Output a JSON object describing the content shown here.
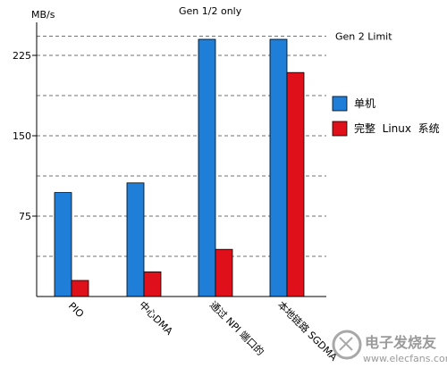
{
  "chart_data": {
    "type": "bar",
    "title": "Gen 1/2 only",
    "ylabel": "MB/s",
    "xlabel": "",
    "ylim": [
      0,
      260
    ],
    "yticks": [
      75,
      150,
      225
    ],
    "grid": "dashed horizontal every 37.5",
    "categories": [
      "PIO",
      "中心DMA",
      "通过 NPI 端口的",
      "本地链路 SGDMA"
    ],
    "series": [
      {
        "name": "单机",
        "color": "#1f7fd8",
        "values": [
          97,
          106,
          240,
          240
        ]
      },
      {
        "name": "完整  Linux  系统",
        "color": "#e0101a",
        "values": [
          15,
          23,
          44,
          209
        ]
      }
    ],
    "reference_line": {
      "label": "Gen 2 Limit",
      "value": 243
    },
    "legend_position": "right"
  },
  "watermark": {
    "text": "电子发烧友",
    "url": "www.elecfans.com"
  }
}
